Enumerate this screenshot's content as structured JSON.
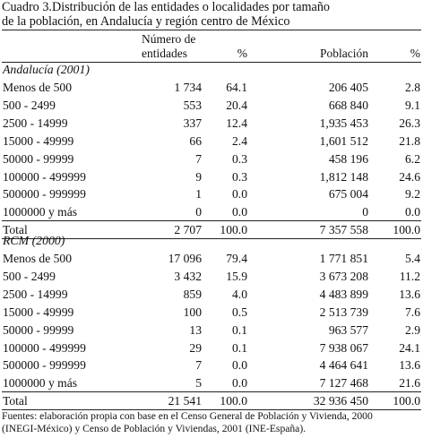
{
  "caption": "Cuadro 3.Distribución de las entidades o localidades por tamaño\nde la población, en Andalucía y región centro de México",
  "headers": {
    "entidades": "Número de\nentidades",
    "pct1": "%",
    "poblacion": "Población",
    "pct2": "%"
  },
  "sections": [
    {
      "title": "Andalucía (2001)",
      "rows": [
        {
          "label": "Menos de 500",
          "ent": "1 734",
          "p1": "64.1",
          "pob": "206 405",
          "p2": "2.8"
        },
        {
          "label": "500 - 2499",
          "ent": "553",
          "p1": "20.4",
          "pob": "668 840",
          "p2": "9.1"
        },
        {
          "label": "2500 - 14999",
          "ent": "337",
          "p1": "12.4",
          "pob": "1,935 453",
          "p2": "26.3"
        },
        {
          "label": "15000 - 49999",
          "ent": "66",
          "p1": "2.4",
          "pob": "1,601 512",
          "p2": "21.8"
        },
        {
          "label": "50000 - 99999",
          "ent": "7",
          "p1": "0.3",
          "pob": "458 196",
          "p2": "6.2"
        },
        {
          "label": "100000 - 499999",
          "ent": "9",
          "p1": "0.3",
          "pob": "1,812 148",
          "p2": "24.6"
        },
        {
          "label": "500000 - 999999",
          "ent": "1",
          "p1": "0.0",
          "pob": "675 004",
          "p2": "9.2"
        },
        {
          "label": "1000000 y más",
          "ent": "0",
          "p1": "0.0",
          "pob": "0",
          "p2": "0.0"
        },
        {
          "label": "Total",
          "ent": "2 707",
          "p1": "100.0",
          "pob": "7 357 558",
          "p2": "100.0"
        }
      ]
    },
    {
      "title": "RCM (2000)",
      "rows": [
        {
          "label": "Menos de 500",
          "ent": "17 096",
          "p1": "79.4",
          "pob": "1 771 851",
          "p2": "5.4"
        },
        {
          "label": "500 - 2499",
          "ent": "3 432",
          "p1": "15.9",
          "pob": "3 673 208",
          "p2": "11.2"
        },
        {
          "label": "2500 - 14999",
          "ent": "859",
          "p1": "4.0",
          "pob": "4 483 899",
          "p2": "13.6"
        },
        {
          "label": "15000 - 49999",
          "ent": "100",
          "p1": "0.5",
          "pob": "2 513 739",
          "p2": "7.6"
        },
        {
          "label": "50000 - 99999",
          "ent": "13",
          "p1": "0.1",
          "pob": "963 577",
          "p2": "2.9"
        },
        {
          "label": "100000 - 499999",
          "ent": "29",
          "p1": "0.1",
          "pob": "7 938 067",
          "p2": "24.1"
        },
        {
          "label": "500000 - 999999",
          "ent": "7",
          "p1": "0.0",
          "pob": "4 464 641",
          "p2": "13.6"
        },
        {
          "label": "1000000 y más",
          "ent": "5",
          "p1": "0.0",
          "pob": "7 127 468",
          "p2": "21.6"
        },
        {
          "label": "Total",
          "ent": "21 541",
          "p1": "100.0",
          "pob": "32 936 450",
          "p2": "100.0"
        }
      ]
    }
  ],
  "source": "Fuentes: elaboración propia con base en el Censo General de Población y Vivienda, 2000\n(INEGI-México) y Censo de Población y Viviendas, 2001 (INE-España)."
}
